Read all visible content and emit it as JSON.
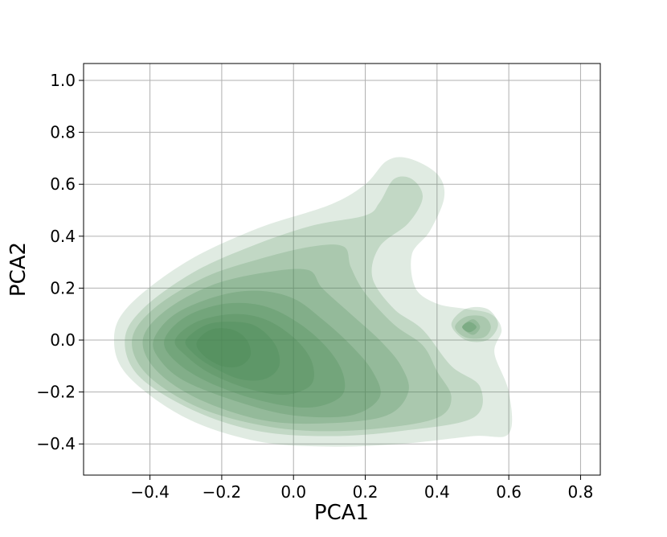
{
  "chart_data": {
    "type": "kde-contour",
    "title": "",
    "xlabel": "PCA1",
    "ylabel": "PCA2",
    "xlim": [
      -0.585,
      0.855
    ],
    "ylim": [
      -0.52,
      1.065
    ],
    "x_ticks": [
      -0.4,
      -0.2,
      0.0,
      0.2,
      0.4,
      0.6,
      0.8
    ],
    "x_tick_labels": [
      "−0.4",
      "−0.2",
      "0.0",
      "0.2",
      "0.4",
      "0.6",
      "0.8"
    ],
    "y_ticks": [
      -0.4,
      -0.2,
      0.0,
      0.2,
      0.4,
      0.6,
      0.8,
      1.0
    ],
    "y_tick_labels": [
      "−0.4",
      "−0.2",
      "0.0",
      "0.2",
      "0.4",
      "0.6",
      "0.8",
      "1.0"
    ],
    "grid": true,
    "fill_color": "#4a8a55",
    "levels": [
      {
        "level": 1,
        "opacity": 0.17,
        "contours": [
          [
            [
              -0.5,
              0.0
            ],
            [
              -0.46,
              0.13
            ],
            [
              -0.3,
              0.3
            ],
            [
              -0.1,
              0.43
            ],
            [
              0.1,
              0.52
            ],
            [
              0.2,
              0.6
            ],
            [
              0.26,
              0.69
            ],
            [
              0.32,
              0.7
            ],
            [
              0.4,
              0.64
            ],
            [
              0.42,
              0.55
            ],
            [
              0.38,
              0.42
            ],
            [
              0.33,
              0.33
            ],
            [
              0.34,
              0.2
            ],
            [
              0.4,
              0.14
            ],
            [
              0.48,
              0.12
            ],
            [
              0.55,
              0.1
            ],
            [
              0.58,
              0.04
            ],
            [
              0.56,
              -0.05
            ],
            [
              0.6,
              -0.2
            ],
            [
              0.6,
              -0.36
            ],
            [
              0.5,
              -0.37
            ],
            [
              0.3,
              -0.4
            ],
            [
              0.1,
              -0.41
            ],
            [
              -0.1,
              -0.39
            ],
            [
              -0.3,
              -0.3
            ],
            [
              -0.46,
              -0.14
            ]
          ]
        ]
      },
      {
        "level": 2,
        "opacity": 0.2,
        "contours": [
          [
            [
              -0.47,
              0.0
            ],
            [
              -0.42,
              0.12
            ],
            [
              -0.28,
              0.26
            ],
            [
              -0.12,
              0.36
            ],
            [
              0.05,
              0.44
            ],
            [
              0.2,
              0.48
            ],
            [
              0.24,
              0.53
            ],
            [
              0.28,
              0.62
            ],
            [
              0.33,
              0.62
            ],
            [
              0.36,
              0.55
            ],
            [
              0.32,
              0.45
            ],
            [
              0.24,
              0.36
            ],
            [
              0.22,
              0.24
            ],
            [
              0.28,
              0.12
            ],
            [
              0.36,
              0.04
            ],
            [
              0.44,
              -0.1
            ],
            [
              0.52,
              -0.18
            ],
            [
              0.5,
              -0.3
            ],
            [
              0.3,
              -0.35
            ],
            [
              0.1,
              -0.37
            ],
            [
              -0.1,
              -0.35
            ],
            [
              -0.28,
              -0.27
            ],
            [
              -0.43,
              -0.14
            ]
          ],
          [
            [
              0.44,
              0.06
            ],
            [
              0.48,
              0.12
            ],
            [
              0.54,
              0.12
            ],
            [
              0.57,
              0.06
            ],
            [
              0.54,
              0.0
            ],
            [
              0.48,
              0.0
            ]
          ]
        ]
      },
      {
        "level": 3,
        "opacity": 0.2,
        "contours": [
          [
            [
              -0.45,
              0.0
            ],
            [
              -0.39,
              0.12
            ],
            [
              -0.25,
              0.24
            ],
            [
              -0.1,
              0.31
            ],
            [
              0.05,
              0.36
            ],
            [
              0.14,
              0.36
            ],
            [
              0.16,
              0.28
            ],
            [
              0.2,
              0.18
            ],
            [
              0.28,
              0.06
            ],
            [
              0.36,
              -0.02
            ],
            [
              0.4,
              -0.12
            ],
            [
              0.44,
              -0.22
            ],
            [
              0.4,
              -0.3
            ],
            [
              0.24,
              -0.34
            ],
            [
              0.05,
              -0.35
            ],
            [
              -0.12,
              -0.32
            ],
            [
              -0.28,
              -0.25
            ],
            [
              -0.41,
              -0.13
            ]
          ],
          [
            [
              0.45,
              0.05
            ],
            [
              0.48,
              0.09
            ],
            [
              0.53,
              0.09
            ],
            [
              0.55,
              0.05
            ],
            [
              0.53,
              0.01
            ],
            [
              0.48,
              0.01
            ]
          ]
        ]
      },
      {
        "level": 4,
        "opacity": 0.22,
        "contours": [
          [
            [
              -0.42,
              0.0
            ],
            [
              -0.36,
              0.11
            ],
            [
              -0.23,
              0.21
            ],
            [
              -0.08,
              0.26
            ],
            [
              0.04,
              0.27
            ],
            [
              0.08,
              0.2
            ],
            [
              0.16,
              0.1
            ],
            [
              0.24,
              0.0
            ],
            [
              0.3,
              -0.1
            ],
            [
              0.32,
              -0.2
            ],
            [
              0.26,
              -0.29
            ],
            [
              0.1,
              -0.32
            ],
            [
              -0.08,
              -0.31
            ],
            [
              -0.26,
              -0.23
            ],
            [
              -0.38,
              -0.12
            ]
          ],
          [
            [
              0.47,
              0.05
            ],
            [
              0.5,
              0.08
            ],
            [
              0.52,
              0.05
            ],
            [
              0.5,
              0.02
            ]
          ]
        ]
      },
      {
        "level": 5,
        "opacity": 0.24,
        "contours": [
          [
            [
              -0.39,
              0.0
            ],
            [
              -0.33,
              0.1
            ],
            [
              -0.21,
              0.17
            ],
            [
              -0.1,
              0.19
            ],
            [
              0.0,
              0.16
            ],
            [
              0.08,
              0.08
            ],
            [
              0.16,
              -0.02
            ],
            [
              0.22,
              -0.12
            ],
            [
              0.24,
              -0.22
            ],
            [
              0.16,
              -0.29
            ],
            [
              0.0,
              -0.29
            ],
            [
              -0.15,
              -0.24
            ],
            [
              -0.3,
              -0.16
            ],
            [
              -0.37,
              -0.08
            ]
          ]
        ]
      },
      {
        "level": 6,
        "opacity": 0.26,
        "contours": [
          [
            [
              -0.36,
              0.0
            ],
            [
              -0.3,
              0.09
            ],
            [
              -0.19,
              0.14
            ],
            [
              -0.08,
              0.13
            ],
            [
              0.02,
              0.06
            ],
            [
              0.1,
              -0.04
            ],
            [
              0.14,
              -0.14
            ],
            [
              0.13,
              -0.22
            ],
            [
              0.04,
              -0.26
            ],
            [
              -0.1,
              -0.23
            ],
            [
              -0.24,
              -0.16
            ],
            [
              -0.33,
              -0.08
            ]
          ]
        ]
      },
      {
        "level": 7,
        "opacity": 0.28,
        "contours": [
          [
            [
              -0.33,
              0.0
            ],
            [
              -0.27,
              0.07
            ],
            [
              -0.17,
              0.1
            ],
            [
              -0.08,
              0.08
            ],
            [
              0.0,
              0.01
            ],
            [
              0.05,
              -0.08
            ],
            [
              0.05,
              -0.17
            ],
            [
              -0.02,
              -0.21
            ],
            [
              -0.12,
              -0.19
            ],
            [
              -0.23,
              -0.13
            ],
            [
              -0.3,
              -0.06
            ]
          ]
        ]
      },
      {
        "level": 8,
        "opacity": 0.3,
        "contours": [
          [
            [
              -0.3,
              0.0
            ],
            [
              -0.24,
              0.06
            ],
            [
              -0.16,
              0.07
            ],
            [
              -0.1,
              0.05
            ],
            [
              -0.05,
              -0.02
            ],
            [
              -0.04,
              -0.1
            ],
            [
              -0.08,
              -0.15
            ],
            [
              -0.15,
              -0.15
            ],
            [
              -0.23,
              -0.1
            ],
            [
              -0.28,
              -0.05
            ]
          ],
          [
            [
              0.47,
              0.05
            ],
            [
              0.49,
              0.07
            ],
            [
              0.51,
              0.05
            ],
            [
              0.49,
              0.03
            ]
          ]
        ]
      },
      {
        "level": 9,
        "opacity": 0.32,
        "contours": [
          [
            [
              -0.27,
              -0.01
            ],
            [
              -0.23,
              0.04
            ],
            [
              -0.17,
              0.04
            ],
            [
              -0.13,
              0.0
            ],
            [
              -0.12,
              -0.06
            ],
            [
              -0.15,
              -0.1
            ],
            [
              -0.2,
              -0.1
            ],
            [
              -0.25,
              -0.06
            ]
          ]
        ]
      }
    ]
  }
}
